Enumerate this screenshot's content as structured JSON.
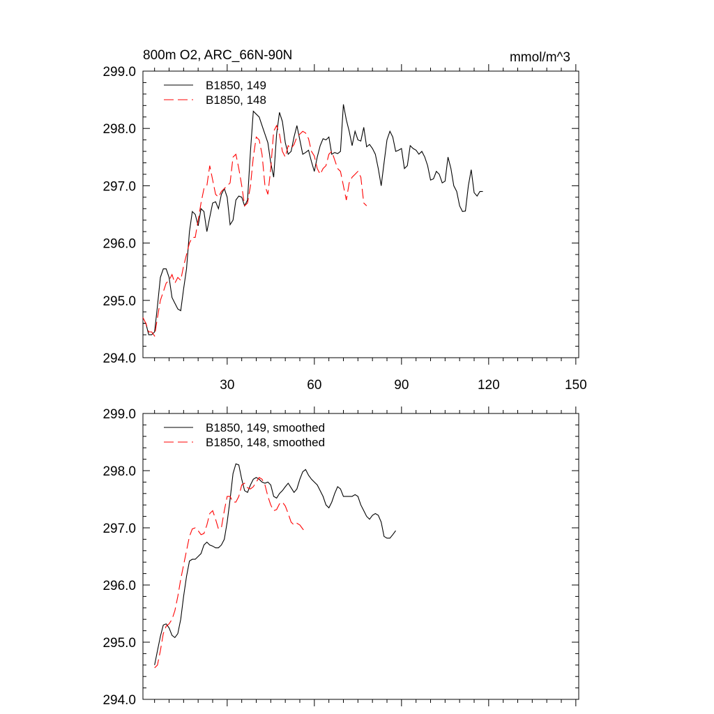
{
  "figure": {
    "title_left": "800m O2, ARC_66N-90N",
    "title_right": "mmol/m^3"
  },
  "chart_data": [
    {
      "type": "line",
      "title": "800m O2, ARC_66N-90N",
      "units": "mmol/m^3",
      "xlim": [
        1,
        151
      ],
      "ylim": [
        294.0,
        299.0
      ],
      "x_ticks": [
        30,
        60,
        90,
        120,
        150
      ],
      "x_tick_labels": [
        "30",
        "60",
        "90",
        "120",
        "150"
      ],
      "y_ticks": [
        294.0,
        295.0,
        296.0,
        297.0,
        298.0,
        299.0
      ],
      "y_tick_labels": [
        "294.0",
        "295.0",
        "296.0",
        "297.0",
        "298.0",
        "299.0"
      ],
      "legend_position": "top-left",
      "series": [
        {
          "name": "B1850, 149",
          "color": "#000000",
          "dash": "solid",
          "x_start": 1,
          "values": [
            294.6,
            294.6,
            294.4,
            294.4,
            294.45,
            294.9,
            295.4,
            295.55,
            295.55,
            295.4,
            295.05,
            294.95,
            294.85,
            294.82,
            295.2,
            295.55,
            296.2,
            296.55,
            296.5,
            296.3,
            296.6,
            296.55,
            296.2,
            296.45,
            296.7,
            296.72,
            296.6,
            296.85,
            296.95,
            296.8,
            296.32,
            296.4,
            296.75,
            296.82,
            296.8,
            296.65,
            296.75,
            297.6,
            298.3,
            298.25,
            298.2,
            298.05,
            297.9,
            297.75,
            297.4,
            297.15,
            297.9,
            298.28,
            298.12,
            297.75,
            297.55,
            297.6,
            297.85,
            298.05,
            297.8,
            297.55,
            297.58,
            297.62,
            297.42,
            297.25,
            297.5,
            297.7,
            297.82,
            297.8,
            297.85,
            297.55,
            297.58,
            297.56,
            297.6,
            298.42,
            298.15,
            297.95,
            297.7,
            297.95,
            297.8,
            297.78,
            298.02,
            297.68,
            297.72,
            297.65,
            297.55,
            297.3,
            297.0,
            297.4,
            297.8,
            297.95,
            297.85,
            297.6,
            297.62,
            297.65,
            297.3,
            297.35,
            297.7,
            297.65,
            297.62,
            297.55,
            297.6,
            297.5,
            297.35,
            297.1,
            297.12,
            297.25,
            297.2,
            297.05,
            297.08,
            297.5,
            297.3,
            297.0,
            296.9,
            296.65,
            296.55,
            296.56,
            297.0,
            297.28,
            296.88,
            296.82,
            296.9,
            296.9
          ]
        },
        {
          "name": "B1850, 148",
          "color": "#ff0000",
          "dash": "dashed",
          "x_start": 1,
          "values": [
            294.7,
            294.6,
            294.45,
            294.45,
            294.38,
            294.7,
            295.0,
            295.15,
            295.3,
            295.35,
            295.45,
            295.3,
            295.4,
            295.35,
            295.6,
            295.8,
            296.0,
            296.1,
            296.1,
            296.4,
            296.7,
            296.95,
            297.0,
            297.35,
            297.1,
            296.85,
            296.8,
            296.9,
            296.95,
            297.0,
            297.05,
            297.5,
            297.55,
            297.3,
            297.0,
            296.65,
            296.7,
            297.0,
            297.5,
            297.85,
            297.8,
            297.55,
            297.0,
            296.85,
            297.3,
            297.95,
            298.05,
            297.9,
            297.6,
            297.5,
            297.7,
            297.65,
            297.72,
            297.85,
            297.9,
            297.95,
            297.92,
            297.82,
            297.6,
            297.52,
            297.3,
            297.2,
            297.3,
            297.35,
            297.55,
            297.6,
            297.45,
            297.3,
            297.25,
            297.0,
            296.75,
            297.05,
            297.15,
            297.2,
            297.25,
            297.15,
            296.7,
            296.65
          ]
        }
      ]
    },
    {
      "type": "line",
      "xlim": [
        1,
        151
      ],
      "ylim": [
        294.0,
        299.0
      ],
      "x_ticks": [
        30,
        60,
        90,
        120,
        150
      ],
      "y_ticks": [
        294.0,
        295.0,
        296.0,
        297.0,
        298.0,
        299.0
      ],
      "y_tick_labels": [
        "294.0",
        "295.0",
        "296.0",
        "297.0",
        "298.0",
        "299.0"
      ],
      "legend_position": "top-left",
      "series": [
        {
          "name": "B1850, 149, smoothed",
          "color": "#000000",
          "dash": "solid",
          "x_start": 5,
          "values": [
            294.6,
            294.85,
            295.1,
            295.3,
            295.32,
            295.25,
            295.12,
            295.08,
            295.15,
            295.4,
            295.8,
            296.15,
            296.42,
            296.45,
            296.45,
            296.5,
            296.55,
            296.7,
            296.75,
            296.7,
            296.68,
            296.65,
            296.65,
            296.7,
            296.8,
            297.1,
            297.5,
            297.95,
            298.12,
            298.1,
            297.85,
            297.65,
            297.62,
            297.75,
            297.85,
            297.88,
            297.85,
            297.8,
            297.78,
            297.8,
            297.75,
            297.55,
            297.52,
            297.6,
            297.65,
            297.72,
            297.78,
            297.7,
            297.62,
            297.68,
            297.85,
            297.98,
            298.02,
            297.92,
            297.85,
            297.8,
            297.75,
            297.65,
            297.55,
            297.4,
            297.35,
            297.45,
            297.6,
            297.72,
            297.68,
            297.55,
            297.55,
            297.55,
            297.55,
            297.58,
            297.55,
            297.4,
            297.3,
            297.2,
            297.15,
            297.22,
            297.25,
            297.22,
            297.1,
            296.85,
            296.82,
            296.82,
            296.88,
            296.95
          ]
        },
        {
          "name": "B1850, 148, smoothed",
          "color": "#ff0000",
          "dash": "dashed",
          "x_start": 5,
          "values": [
            294.55,
            294.6,
            294.85,
            295.15,
            295.28,
            295.32,
            295.4,
            295.55,
            295.8,
            296.1,
            296.35,
            296.6,
            296.85,
            296.98,
            297.0,
            296.95,
            296.88,
            296.9,
            297.05,
            297.25,
            297.3,
            297.15,
            296.98,
            297.0,
            297.3,
            297.55,
            297.55,
            297.45,
            297.45,
            297.55,
            297.75,
            297.78,
            297.7,
            297.68,
            297.72,
            297.8,
            297.88,
            297.85,
            297.75,
            297.55,
            297.4,
            297.3,
            297.32,
            297.42,
            297.45,
            297.38,
            297.25,
            297.1,
            297.05,
            297.08,
            297.05,
            296.98,
            296.92
          ]
        }
      ]
    }
  ]
}
